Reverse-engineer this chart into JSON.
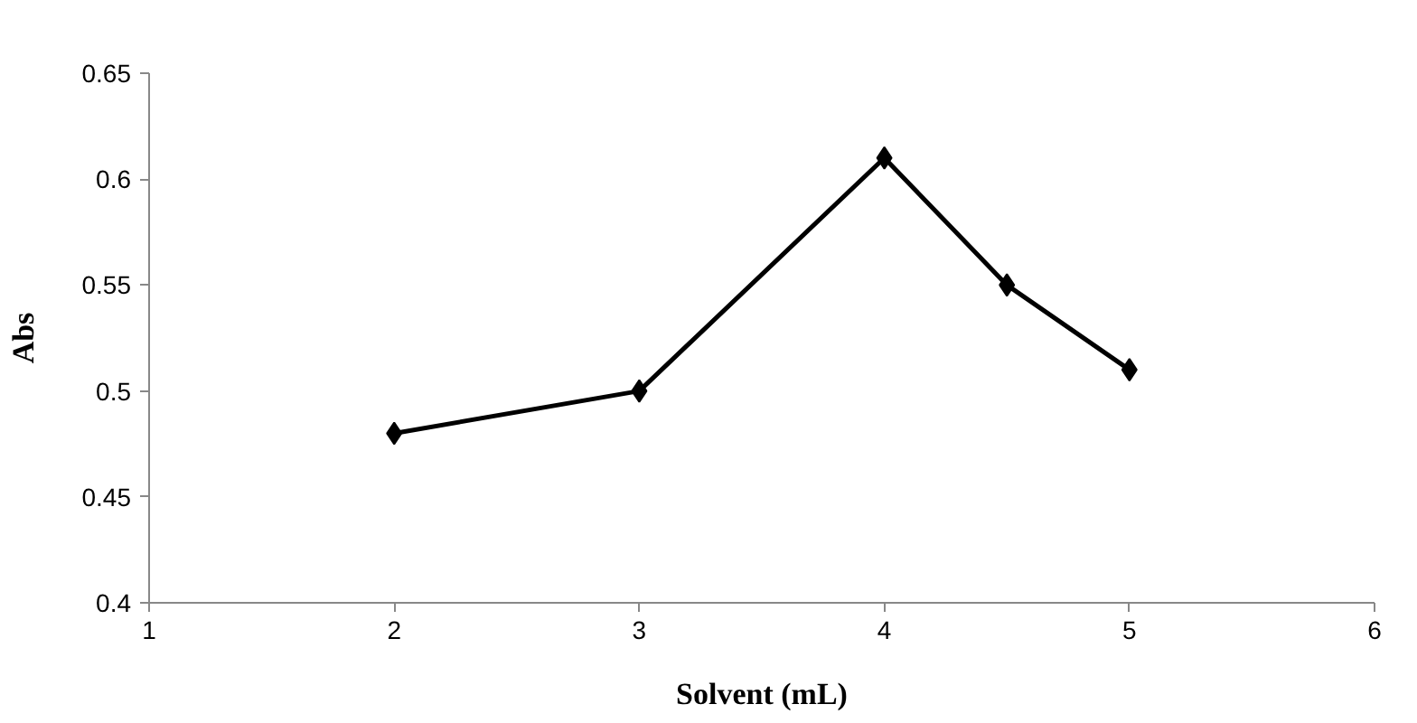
{
  "chart_data": {
    "type": "line",
    "xlabel": "Solvent (mL)",
    "ylabel": "Abs",
    "x": [
      2,
      3,
      4,
      4.5,
      5
    ],
    "series": [
      {
        "color": "#000000",
        "values": [
          0.48,
          0.5,
          0.61,
          0.55,
          0.51
        ]
      }
    ],
    "xlim": [
      1,
      6
    ],
    "xticks": [
      1,
      2,
      3,
      4,
      5,
      6
    ],
    "ylim": [
      0.4,
      0.65
    ],
    "yticks": [
      {
        "value": 0.4,
        "label": "0.4"
      },
      {
        "value": 0.45,
        "label": "0.45"
      },
      {
        "value": 0.5,
        "label": "0.5"
      },
      {
        "value": 0.55,
        "label": "0.55"
      },
      {
        "value": 0.6,
        "label": "0.6"
      },
      {
        "value": 0.65,
        "label": "0.65"
      }
    ],
    "grid": false,
    "marker": "diamond",
    "line_style": "solid"
  }
}
